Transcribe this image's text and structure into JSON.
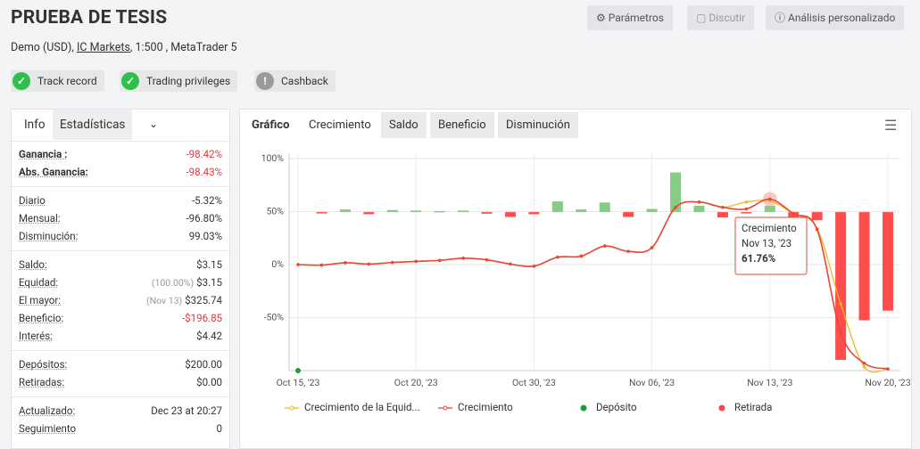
{
  "header": {
    "title": "PRUEBA DE TESIS",
    "buttons": [
      "Parámetros",
      "Discutir",
      "Análisis personalizado"
    ],
    "account_prefix": "Demo (USD),",
    "broker": "IC Markets",
    "account_suffix": ", 1:500 , MetaTrader 5",
    "badges": [
      "Track record",
      "Trading privileges",
      "Cashback"
    ]
  },
  "stats": {
    "tabs": [
      "Info",
      "Estadísticas"
    ],
    "groups": [
      [
        {
          "label": "Ganancia :",
          "value": "-98.42%",
          "color": "#e8323c"
        },
        {
          "label": "Abs. Ganancia:",
          "value": "-98.43%",
          "color": "#e8323c"
        }
      ],
      [
        {
          "label": "Diario",
          "value": "-5.32%"
        },
        {
          "label": "Mensual:",
          "value": "-96.80%"
        },
        {
          "label": "Disminución:",
          "value": "99.03%"
        }
      ],
      [
        {
          "label": "Saldo:",
          "value": "$3.15"
        },
        {
          "label": "Equidad:",
          "note": "(100.00%)",
          "value": "$3.15"
        },
        {
          "label": "El mayor:",
          "note": "(Nov 13)",
          "value": "$325.74"
        },
        {
          "label": "Beneficio:",
          "value": "-$196.85",
          "color": "#e8323c"
        },
        {
          "label": "Interés:",
          "value": "$4.42"
        }
      ],
      [
        {
          "label": "Depósitos:",
          "value": "$200.00"
        },
        {
          "label": "Retiradas:",
          "value": "$0.00"
        }
      ],
      [
        {
          "label": "Actualizado:",
          "value": "Dec 23 at 20:27"
        },
        {
          "label": "Seguimiento",
          "value": "0"
        }
      ]
    ]
  },
  "chart": {
    "type": "line",
    "tabs": [
      "Gráfico",
      "Crecimiento",
      "Saldo",
      "Beneficio",
      "Disminución"
    ],
    "categories": [
      "Oct 15, '23",
      null,
      null,
      null,
      null,
      "Oct 20, '23",
      null,
      null,
      null,
      null,
      "Oct 30, '23",
      null,
      null,
      null,
      null,
      "Nov 06, '23",
      null,
      null,
      null,
      null,
      "Nov 13, '23",
      null,
      null,
      null,
      null,
      "Nov 20, '23"
    ],
    "ylim": [
      -100,
      100
    ],
    "yticks": [
      {
        "value": 100,
        "label": "100%"
      },
      {
        "value": 50,
        "label": "50%"
      },
      {
        "value": 0,
        "label": "0%"
      },
      {
        "value": -50,
        "label": "-50%"
      }
    ],
    "y2lim": [
      -148,
      50
    ],
    "grid": true,
    "series": [
      {
        "name": "Crecimiento de la Equid...",
        "color": "#f5b81c",
        "values": [
          0,
          -0.5,
          1.7,
          0.5,
          2,
          3,
          4,
          6,
          4.5,
          0.5,
          -1.5,
          7,
          8,
          17.5,
          12.5,
          16,
          54,
          59,
          54,
          59,
          60,
          48,
          34,
          -37,
          -96.5,
          -98.43
        ]
      },
      {
        "name": "Crecimiento",
        "color": "#e8483a",
        "values": [
          0,
          -0.5,
          1.7,
          0.5,
          2,
          3,
          4,
          6,
          4.5,
          0.5,
          -1.5,
          7,
          8,
          17.5,
          12.5,
          16,
          54,
          59,
          54,
          52.5,
          61.76,
          48,
          33,
          -64,
          -93,
          -98.42
        ]
      },
      {
        "name": "Depósito",
        "color": "#1a9e3a",
        "values": [
          -100,
          null,
          null,
          null,
          null,
          null,
          null,
          null,
          null,
          null,
          null,
          null,
          null,
          null,
          null,
          null,
          null,
          null,
          null,
          null,
          null,
          null,
          null,
          null,
          null,
          null
        ]
      },
      {
        "name": "Retirada",
        "color": "#f04a4a",
        "values": [
          null,
          null,
          null,
          null,
          null,
          null,
          null,
          null,
          null,
          null,
          null,
          null,
          null,
          null,
          null,
          null,
          null,
          null,
          null,
          null,
          null,
          null,
          null,
          null,
          null,
          null
        ]
      }
    ],
    "bars": {
      "axis": "y2",
      "positive_color": "#86cc86",
      "negative_color": "#ff4d4d",
      "values": [
        null,
        -1,
        2.5,
        -2,
        2,
        1.5,
        1,
        1.5,
        -1.5,
        -4.5,
        -2,
        10,
        2.5,
        9,
        -4.5,
        3,
        37,
        6,
        -5,
        -1,
        6,
        -6,
        -7.5,
        -138,
        -101,
        -92
      ]
    },
    "tooltip": {
      "series": "Crecimiento",
      "date": "Nov 13, '23",
      "value_label": "61.76%",
      "index": 20
    }
  }
}
